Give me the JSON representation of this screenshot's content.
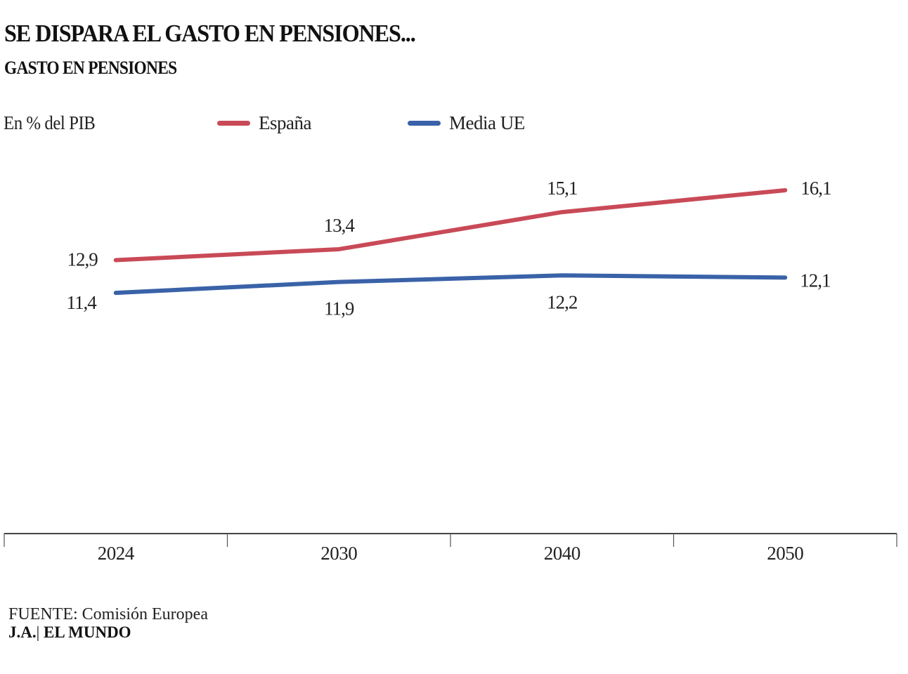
{
  "header": {
    "title": "SE DISPARA EL GASTO EN PENSIONES...",
    "subtitle": "GASTO EN PENSIONES"
  },
  "chart_data": {
    "type": "line",
    "title": "SE DISPARA EL GASTO EN PENSIONES...",
    "subtitle": "GASTO EN PENSIONES",
    "ylabel": "En % del PIB",
    "xlabel": "",
    "categories": [
      "2024",
      "2030",
      "2040",
      "2050"
    ],
    "series": [
      {
        "name": "España",
        "color": "#c94a57",
        "values": [
          12.9,
          13.4,
          15.1,
          16.1
        ],
        "labels": [
          "12,9",
          "13,4",
          "15,1",
          "16,1"
        ]
      },
      {
        "name": "Media UE",
        "color": "#3a62a8",
        "values": [
          11.4,
          11.9,
          12.2,
          12.1
        ],
        "labels": [
          "11,4",
          "11,9",
          "12,2",
          "12,1"
        ]
      }
    ],
    "ylim": [
      0,
      16.1
    ],
    "grid": false,
    "legend": "top"
  },
  "footer": {
    "source_label": "FUENTE:",
    "source_value": " Comisión Europea",
    "credit_author": "J.A.",
    "credit_separator": "|",
    "credit_outlet": " EL MUNDO"
  }
}
